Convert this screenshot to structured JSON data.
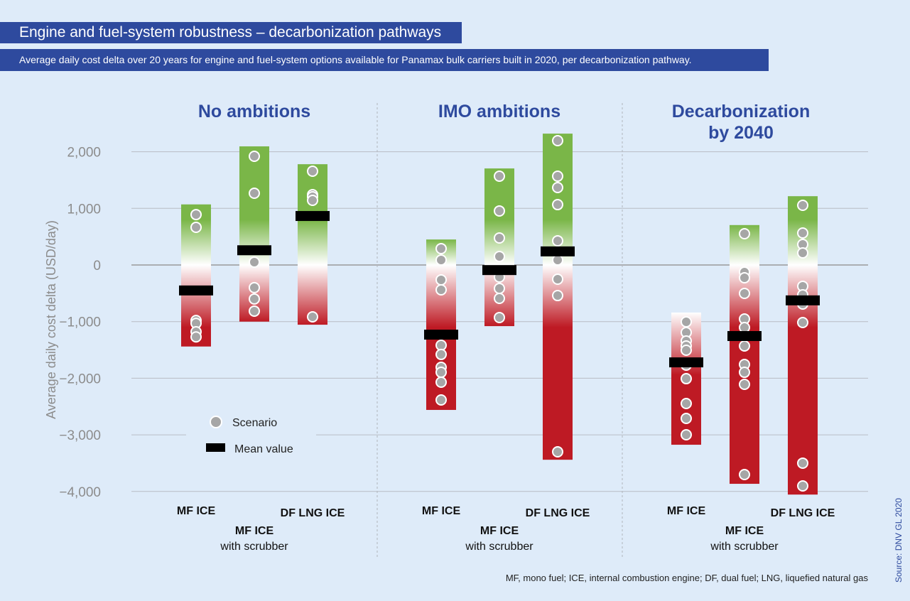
{
  "header": {
    "title": "Engine and fuel-system robustness – decarbonization pathways",
    "subtitle": "Average daily cost delta over 20 years for engine and fuel-system options available for Panamax bulk carriers built in 2020, per decarbonization pathway."
  },
  "footnote": "MF, mono fuel; ICE, internal combustion engine; DF, dual fuel; LNG, liquefied natural gas",
  "source": "Source: DNV GL 2020",
  "colors": {
    "positive": "#7ab648",
    "zero": "#ffffff",
    "negative": "#be1a24",
    "mean": "#000000",
    "scenario": "#a6a6a6",
    "title_bg": "#2e4a9e",
    "group_title": "#2e4a9e"
  },
  "chart_data": {
    "type": "range-bar",
    "ylabel": "Average daily cost delta (USD/day)",
    "ylim": [
      -4000,
      2400
    ],
    "yticks": [
      2000,
      1000,
      0,
      -1000,
      -2000,
      -3000,
      -4000
    ],
    "ytick_labels": [
      "2,000",
      "1,000",
      "0",
      "−1,000",
      "−2,000",
      "−3,000",
      "−4,000"
    ],
    "legend": {
      "scenario": "Scenario",
      "mean": "Mean value",
      "position": "bottom-left"
    },
    "groups": [
      {
        "title": [
          "No ambitions"
        ],
        "options": [
          {
            "label": [
              "MF  ICE"
            ],
            "max": 1070,
            "min": -1440,
            "mean": -450,
            "scenarios": [
              890,
              665,
              -980,
              -1030,
              -1180,
              -1270
            ]
          },
          {
            "label": [
              "MF  ICE",
              "with scrubber"
            ],
            "max": 2095,
            "min": -1000,
            "mean": 260,
            "scenarios": [
              1920,
              1267,
              50,
              -400,
              -600,
              -815
            ]
          },
          {
            "label": [
              "DF LNG ICE"
            ],
            "max": 1780,
            "min": -1055,
            "mean": 865,
            "scenarios": [
              1656,
              1242,
              1204,
              1142,
              -916
            ]
          }
        ]
      },
      {
        "title": [
          "IMO ambitions"
        ],
        "options": [
          {
            "label": [
              "MF  ICE"
            ],
            "max": 450,
            "min": -2560,
            "mean": -1230,
            "scenarios": [
              289,
              88,
              -263,
              -439,
              -1418,
              -1580,
              -1807,
              -1895,
              -2070,
              -2384
            ]
          },
          {
            "label": [
              "MF  ICE",
              "with scrubber"
            ],
            "max": 1705,
            "min": -1080,
            "mean": -90,
            "scenarios": [
              1568,
              954,
              477,
              150,
              -213,
              -414,
              -590,
              -928
            ]
          },
          {
            "label": [
              "DF LNG ICE"
            ],
            "max": 2320,
            "min": -3440,
            "mean": 240,
            "scenarios": [
              2196,
              1568,
              1368,
              1066,
              427,
              88,
              -251,
              -540,
              -3300
            ]
          }
        ]
      },
      {
        "title": [
          "Decarbonization",
          "by 2040"
        ],
        "options": [
          {
            "label": [
              "MF  ICE"
            ],
            "max": -840,
            "min": -3175,
            "mean": -1720,
            "scenarios": [
              -1004,
              -1192,
              -1342,
              -1430,
              -1506,
              -1769,
              -2008,
              -2447,
              -2710,
              -2999
            ]
          },
          {
            "label": [
              "MF  ICE",
              "with scrubber"
            ],
            "max": 705,
            "min": -3865,
            "mean": -1255,
            "scenarios": [
              552,
              -125,
              -226,
              -502,
              -954,
              -1104,
              -1430,
              -1757,
              -1895,
              -2108,
              -3701
            ]
          },
          {
            "label": [
              "DF LNG ICE"
            ],
            "max": 1215,
            "min": -4055,
            "mean": -625,
            "scenarios": [
              1054,
              565,
              364,
              213,
              -376,
              -527,
              -690,
              -1016,
              -3500,
              -3902
            ]
          }
        ]
      }
    ]
  }
}
